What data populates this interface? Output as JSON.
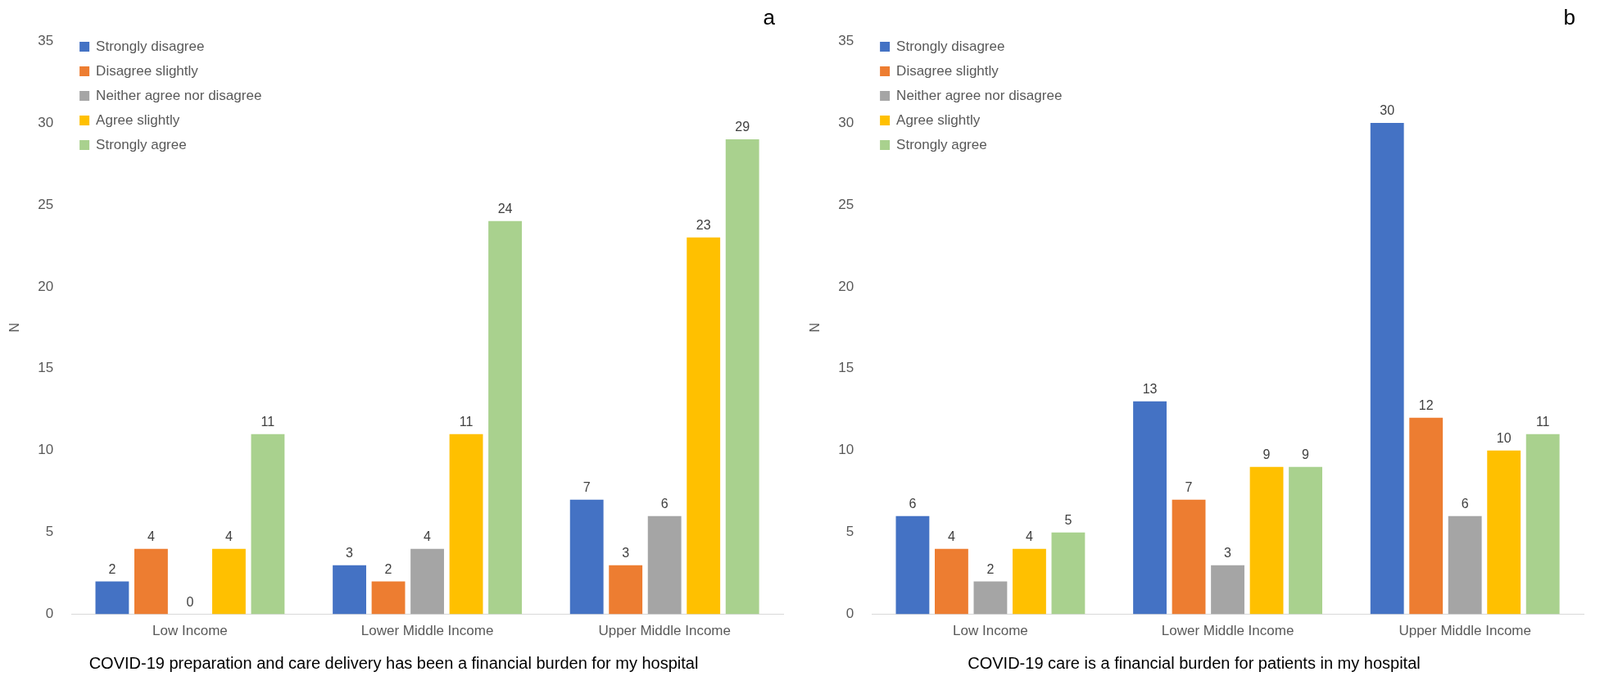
{
  "chart_data": [
    {
      "type": "bar",
      "title": "COVID-19 preparation and care delivery has been a financial burden for my hospital",
      "annotations": [
        "a"
      ],
      "y_label": "N",
      "categories": [
        "Low Income",
        "Lower Middle Income",
        "Upper Middle Income"
      ],
      "series": [
        {
          "name": "Strongly disagree",
          "color": "#4472c4",
          "values": [
            2,
            3,
            7
          ]
        },
        {
          "name": "Disagree slightly",
          "color": "#ed7d31",
          "values": [
            4,
            2,
            3
          ]
        },
        {
          "name": "Neither agree nor disagree",
          "color": "#a5a5a5",
          "values": [
            0,
            4,
            6
          ]
        },
        {
          "name": "Agree slightly",
          "color": "#ffc000",
          "values": [
            4,
            11,
            23
          ]
        },
        {
          "name": "Strongly agree",
          "color": "#a9d18e",
          "values": [
            11,
            24,
            29
          ]
        }
      ],
      "ylim": [
        0,
        35
      ],
      "yticks": [
        0,
        5,
        10,
        15,
        20,
        25,
        30,
        35
      ],
      "grid": false,
      "legend": "upper left",
      "data_labels": true
    },
    {
      "type": "bar",
      "title": "COVID-19 care is a financial burden for patients in my hospital",
      "annotations": [
        "b"
      ],
      "y_label": "N",
      "categories": [
        "Low Income",
        "Lower Middle Income",
        "Upper Middle Income"
      ],
      "series": [
        {
          "name": "Strongly disagree",
          "color": "#4472c4",
          "values": [
            6,
            13,
            30
          ]
        },
        {
          "name": "Disagree slightly",
          "color": "#ed7d31",
          "values": [
            4,
            7,
            12
          ]
        },
        {
          "name": "Neither agree nor disagree",
          "color": "#a5a5a5",
          "values": [
            2,
            3,
            6
          ]
        },
        {
          "name": "Agree slightly",
          "color": "#ffc000",
          "values": [
            4,
            9,
            10
          ]
        },
        {
          "name": "Strongly agree",
          "color": "#a9d18e",
          "values": [
            5,
            9,
            11
          ]
        }
      ],
      "ylim": [
        0,
        35
      ],
      "yticks": [
        0,
        5,
        10,
        15,
        20,
        25,
        30,
        35
      ],
      "grid": false,
      "legend": "upper left",
      "data_labels": true
    }
  ]
}
